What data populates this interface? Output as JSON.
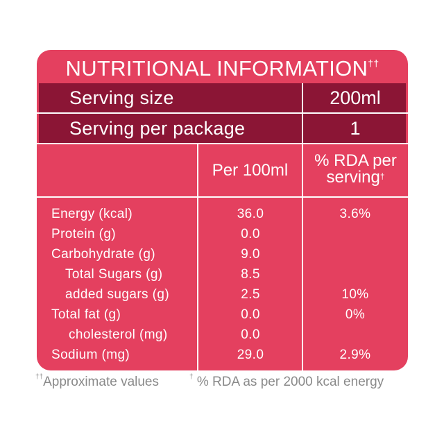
{
  "label": {
    "title": "NUTRITIONAL INFORMATION",
    "title_mark": "††",
    "serving_size_label": "Serving size",
    "serving_size_value": "200ml",
    "servings_label": "Serving per package",
    "servings_value": "1",
    "col_per100": "Per 100ml",
    "col_rda_line1": "% RDA per",
    "col_rda_line2": "serving",
    "col_rda_mark": "†",
    "rows": [
      {
        "name": "Energy (kcal)",
        "per100": "36.0",
        "rda": "3.6%"
      },
      {
        "name": "Protein (g)",
        "per100": "0.0",
        "rda": ""
      },
      {
        "name": "Carbohydrate (g)",
        "per100": "9.0",
        "rda": ""
      },
      {
        "name": "Total Sugars (g)",
        "per100": "8.5",
        "rda": ""
      },
      {
        "name": "added sugars (g)",
        "per100": "2.5",
        "rda": "10%"
      },
      {
        "name": "Total fat (g)",
        "per100": "0.0",
        "rda": "0%"
      },
      {
        "name": "cholesterol (mg)",
        "per100": "0.0",
        "rda": ""
      },
      {
        "name": "Sodium (mg)",
        "per100": "29.0",
        "rda": "2.9%"
      }
    ]
  },
  "footnotes": {
    "approx_mark": "††",
    "approx_text": "Approximate values",
    "rda_mark": "†",
    "rda_text": " % RDA as per 2000 kcal energy"
  },
  "colors": {
    "panel": "#e4405f",
    "band": "#8b1535",
    "footnote": "#8a8a8a"
  }
}
